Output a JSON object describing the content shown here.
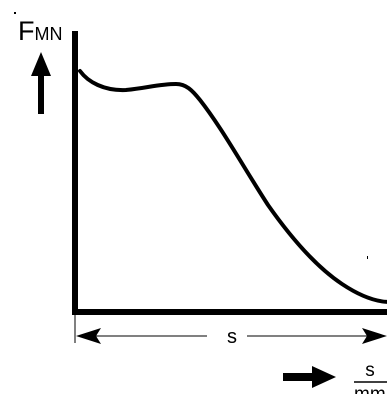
{
  "diagram": {
    "y_axis_symbol": "F",
    "y_axis_subscript": "MN",
    "span_label": "s",
    "x_unit_numerator": "s",
    "x_unit_denominator": "mm"
  }
}
